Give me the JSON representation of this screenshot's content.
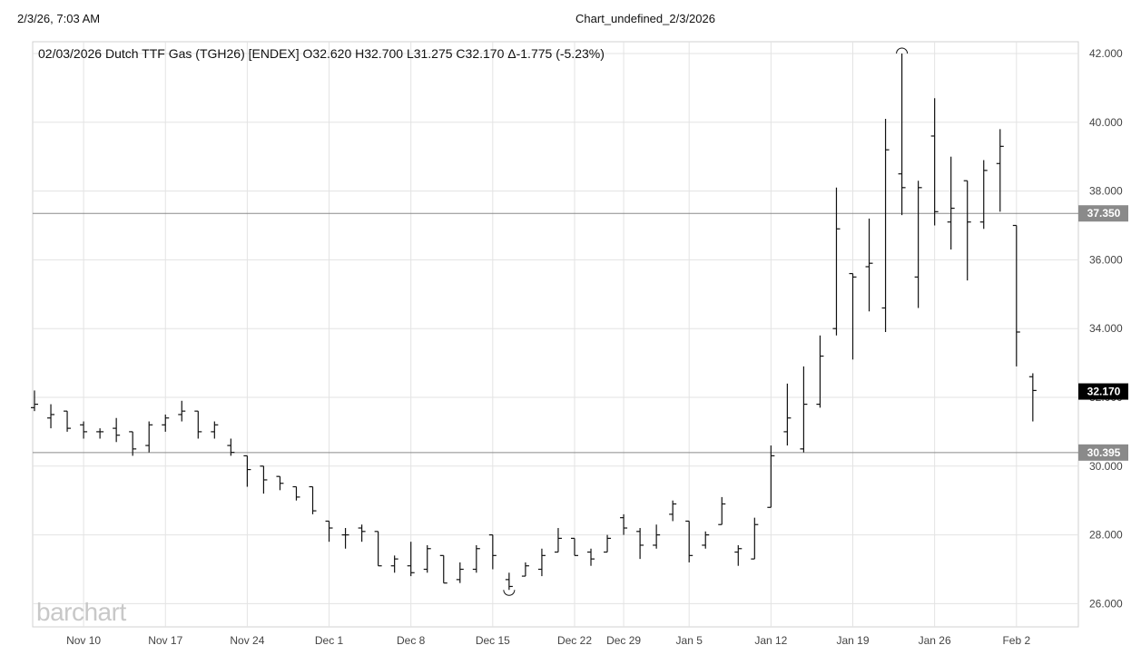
{
  "header": {
    "timestamp": "2/3/26, 7:03 AM",
    "page_title": "Chart_undefined_2/3/2026"
  },
  "logo_text": "barchart",
  "chart_data": {
    "type": "ohlc",
    "title": "02/03/2026 Dutch TTF Gas (TGH26) [ENDEX] O32.620 H32.700 L31.275 C32.170 Δ-1.775 (-5.23%)",
    "ylim": [
      25.3,
      42.3
    ],
    "y_ticks": [
      "26.000",
      "28.000",
      "30.000",
      "32.000",
      "34.000",
      "36.000",
      "38.000",
      "40.000",
      "42.000"
    ],
    "x_ticks": [
      {
        "label": "Nov 10",
        "index": 3
      },
      {
        "label": "Nov 17",
        "index": 8
      },
      {
        "label": "Nov 24",
        "index": 13
      },
      {
        "label": "Dec 1",
        "index": 18
      },
      {
        "label": "Dec 8",
        "index": 23
      },
      {
        "label": "Dec 15",
        "index": 28
      },
      {
        "label": "Dec 22",
        "index": 33
      },
      {
        "label": "Dec 29",
        "index": 36
      },
      {
        "label": "Jan 5",
        "index": 40
      },
      {
        "label": "Jan 12",
        "index": 45
      },
      {
        "label": "Jan 19",
        "index": 50
      },
      {
        "label": "Jan 26",
        "index": 55
      },
      {
        "label": "Feb 2",
        "index": 60
      }
    ],
    "reference_lines": [
      {
        "value": 37.35,
        "label": "37.350",
        "color": "#8a8a8a"
      },
      {
        "value": 30.395,
        "label": "30.395",
        "color": "#8a8a8a"
      }
    ],
    "last_price": {
      "value": 32.17,
      "label": "32.170",
      "color": "#000000"
    },
    "high_marker_index": 53,
    "low_marker_index": 29,
    "bars": [
      {
        "o": 31.7,
        "h": 32.2,
        "l": 31.6,
        "c": 31.8
      },
      {
        "o": 31.4,
        "h": 31.8,
        "l": 31.1,
        "c": 31.5
      },
      {
        "o": 31.6,
        "h": 31.6,
        "l": 31.0,
        "c": 31.1
      },
      {
        "o": 31.2,
        "h": 31.3,
        "l": 30.8,
        "c": 31.0
      },
      {
        "o": 31.0,
        "h": 31.1,
        "l": 30.8,
        "c": 31.0
      },
      {
        "o": 31.1,
        "h": 31.4,
        "l": 30.7,
        "c": 30.9
      },
      {
        "o": 31.0,
        "h": 31.0,
        "l": 30.3,
        "c": 30.5
      },
      {
        "o": 30.6,
        "h": 31.3,
        "l": 30.4,
        "c": 31.2
      },
      {
        "o": 31.2,
        "h": 31.5,
        "l": 31.0,
        "c": 31.4
      },
      {
        "o": 31.5,
        "h": 31.9,
        "l": 31.3,
        "c": 31.6
      },
      {
        "o": 31.6,
        "h": 31.6,
        "l": 30.8,
        "c": 31.0
      },
      {
        "o": 31.0,
        "h": 31.3,
        "l": 30.8,
        "c": 31.2
      },
      {
        "o": 30.6,
        "h": 30.8,
        "l": 30.3,
        "c": 30.4
      },
      {
        "o": 30.3,
        "h": 30.3,
        "l": 29.4,
        "c": 29.9
      },
      {
        "o": 30.0,
        "h": 30.0,
        "l": 29.2,
        "c": 29.6
      },
      {
        "o": 29.7,
        "h": 29.7,
        "l": 29.3,
        "c": 29.5
      },
      {
        "o": 29.4,
        "h": 29.4,
        "l": 29.0,
        "c": 29.1
      },
      {
        "o": 29.4,
        "h": 29.4,
        "l": 28.6,
        "c": 28.7
      },
      {
        "o": 28.4,
        "h": 28.4,
        "l": 27.8,
        "c": 28.2
      },
      {
        "o": 28.0,
        "h": 28.2,
        "l": 27.6,
        "c": 28.0
      },
      {
        "o": 28.2,
        "h": 28.3,
        "l": 27.8,
        "c": 28.1
      },
      {
        "o": 28.1,
        "h": 28.1,
        "l": 27.1,
        "c": 27.1
      },
      {
        "o": 27.1,
        "h": 27.4,
        "l": 26.9,
        "c": 27.3
      },
      {
        "o": 27.1,
        "h": 27.8,
        "l": 26.8,
        "c": 26.9
      },
      {
        "o": 27.0,
        "h": 27.7,
        "l": 26.9,
        "c": 27.6
      },
      {
        "o": 27.4,
        "h": 27.4,
        "l": 26.6,
        "c": 26.6
      },
      {
        "o": 26.7,
        "h": 27.2,
        "l": 26.6,
        "c": 27.0
      },
      {
        "o": 27.0,
        "h": 27.7,
        "l": 26.9,
        "c": 27.6
      },
      {
        "o": 28.0,
        "h": 28.0,
        "l": 27.0,
        "c": 27.4
      },
      {
        "o": 26.7,
        "h": 26.9,
        "l": 26.4,
        "c": 26.5
      },
      {
        "o": 26.8,
        "h": 27.2,
        "l": 26.8,
        "c": 27.1
      },
      {
        "o": 27.0,
        "h": 27.6,
        "l": 26.8,
        "c": 27.4
      },
      {
        "o": 27.5,
        "h": 28.2,
        "l": 27.5,
        "c": 27.9
      },
      {
        "o": 27.9,
        "h": 27.9,
        "l": 27.4,
        "c": 27.4
      },
      {
        "o": 27.5,
        "h": 27.6,
        "l": 27.1,
        "c": 27.3
      },
      {
        "o": 27.5,
        "h": 28.0,
        "l": 27.5,
        "c": 27.9
      },
      {
        "o": 28.5,
        "h": 28.6,
        "l": 28.0,
        "c": 28.2
      },
      {
        "o": 28.1,
        "h": 28.2,
        "l": 27.3,
        "c": 27.7
      },
      {
        "o": 27.7,
        "h": 28.3,
        "l": 27.6,
        "c": 28.0
      },
      {
        "o": 28.6,
        "h": 29.0,
        "l": 28.4,
        "c": 28.9
      },
      {
        "o": 28.4,
        "h": 28.4,
        "l": 27.2,
        "c": 27.4
      },
      {
        "o": 27.7,
        "h": 28.1,
        "l": 27.6,
        "c": 28.0
      },
      {
        "o": 28.3,
        "h": 29.1,
        "l": 28.3,
        "c": 28.9
      },
      {
        "o": 27.5,
        "h": 27.7,
        "l": 27.1,
        "c": 27.6
      },
      {
        "o": 27.3,
        "h": 28.5,
        "l": 27.3,
        "c": 28.3
      },
      {
        "o": 28.8,
        "h": 30.6,
        "l": 28.8,
        "c": 30.3
      },
      {
        "o": 31.0,
        "h": 32.4,
        "l": 30.6,
        "c": 31.4
      },
      {
        "o": 30.5,
        "h": 32.9,
        "l": 30.4,
        "c": 31.8
      },
      {
        "o": 31.8,
        "h": 33.8,
        "l": 31.7,
        "c": 33.2
      },
      {
        "o": 34.0,
        "h": 38.1,
        "l": 33.8,
        "c": 36.9
      },
      {
        "o": 35.6,
        "h": 35.6,
        "l": 33.1,
        "c": 35.5
      },
      {
        "o": 35.8,
        "h": 37.2,
        "l": 34.5,
        "c": 35.9
      },
      {
        "o": 34.6,
        "h": 40.1,
        "l": 33.9,
        "c": 39.2
      },
      {
        "o": 38.5,
        "h": 42.0,
        "l": 37.3,
        "c": 38.1
      },
      {
        "o": 35.5,
        "h": 38.3,
        "l": 34.6,
        "c": 38.1
      },
      {
        "o": 39.6,
        "h": 40.7,
        "l": 37.0,
        "c": 37.4
      },
      {
        "o": 37.1,
        "h": 39.0,
        "l": 36.3,
        "c": 37.5
      },
      {
        "o": 38.3,
        "h": 38.3,
        "l": 35.4,
        "c": 37.1
      },
      {
        "o": 37.1,
        "h": 38.9,
        "l": 36.9,
        "c": 38.6
      },
      {
        "o": 38.8,
        "h": 39.8,
        "l": 37.4,
        "c": 39.3
      },
      {
        "o": 37.0,
        "h": 37.0,
        "l": 32.9,
        "c": 33.9
      },
      {
        "o": 32.6,
        "h": 32.7,
        "l": 31.3,
        "c": 32.2
      }
    ]
  }
}
